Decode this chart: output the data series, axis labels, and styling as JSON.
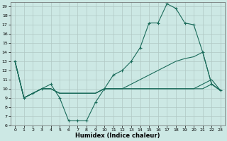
{
  "xlabel": "Humidex (Indice chaleur)",
  "background_color": "#cce8e4",
  "grid_color": "#b0c8c4",
  "line_color": "#1a6b5a",
  "xlim": [
    -0.5,
    23.5
  ],
  "ylim": [
    6,
    19.5
  ],
  "x_ticks": [
    0,
    1,
    2,
    3,
    4,
    5,
    6,
    7,
    8,
    9,
    10,
    11,
    12,
    13,
    14,
    15,
    16,
    17,
    18,
    19,
    20,
    21,
    22,
    23
  ],
  "y_ticks": [
    6,
    7,
    8,
    9,
    10,
    11,
    12,
    13,
    14,
    15,
    16,
    17,
    18,
    19
  ],
  "series": [
    {
      "x": [
        0,
        1,
        2,
        3,
        4,
        5,
        6,
        7,
        8,
        9,
        10,
        11,
        12,
        13,
        14,
        15,
        16,
        17,
        18,
        19,
        20,
        21,
        22,
        23
      ],
      "y": [
        13,
        9,
        9.5,
        10,
        10.5,
        9,
        6.5,
        6.5,
        6.5,
        8.5,
        10,
        11.5,
        12,
        13,
        14.5,
        17.2,
        17.2,
        19.3,
        18.8,
        17.2,
        17.0,
        14.0,
        10.5,
        9.8
      ],
      "marker": "+"
    },
    {
      "x": [
        0,
        1,
        2,
        3,
        4,
        5,
        6,
        7,
        8,
        9,
        10,
        11,
        12,
        13,
        14,
        15,
        16,
        17,
        18,
        19,
        20,
        21,
        22,
        23
      ],
      "y": [
        13,
        9,
        9.5,
        10,
        10,
        9.5,
        9.5,
        9.5,
        9.5,
        9.5,
        10,
        10,
        10,
        10,
        10,
        10,
        10,
        10,
        10,
        10,
        10,
        10.5,
        11,
        9.8
      ],
      "marker": null
    },
    {
      "x": [
        0,
        1,
        2,
        3,
        4,
        5,
        6,
        7,
        8,
        9,
        10,
        11,
        12,
        13,
        14,
        15,
        16,
        17,
        18,
        19,
        20,
        21,
        22,
        23
      ],
      "y": [
        13,
        9,
        9.5,
        10,
        10,
        9.5,
        9.5,
        9.5,
        9.5,
        9.5,
        10,
        10,
        10,
        10.5,
        11,
        11.5,
        12,
        12.5,
        13,
        13.3,
        13.5,
        14.0,
        10.5,
        9.8
      ],
      "marker": null
    },
    {
      "x": [
        0,
        1,
        2,
        3,
        4,
        5,
        6,
        7,
        8,
        9,
        10,
        11,
        12,
        13,
        14,
        15,
        16,
        17,
        18,
        19,
        20,
        21,
        22,
        23
      ],
      "y": [
        13,
        9,
        9.5,
        10,
        10,
        9.5,
        9.5,
        9.5,
        9.5,
        9.5,
        10,
        10,
        10,
        10,
        10,
        10,
        10,
        10,
        10,
        10,
        10,
        10,
        10.5,
        9.8
      ],
      "marker": null
    }
  ]
}
